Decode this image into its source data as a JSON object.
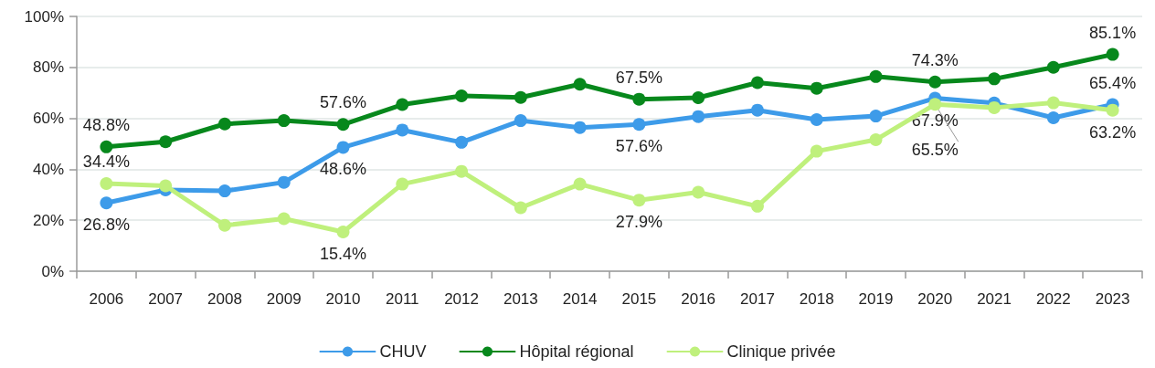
{
  "chart_data": {
    "type": "line",
    "categories": [
      "2006",
      "2007",
      "2008",
      "2009",
      "2010",
      "2011",
      "2012",
      "2013",
      "2014",
      "2015",
      "2016",
      "2017",
      "2018",
      "2019",
      "2020",
      "2021",
      "2022",
      "2023"
    ],
    "series": [
      {
        "name": "CHUV",
        "color": "#3d9be9",
        "values": [
          26.8,
          31.9,
          31.5,
          34.9,
          48.6,
          55.4,
          50.6,
          59.1,
          56.4,
          57.6,
          60.7,
          63.2,
          59.5,
          60.9,
          67.9,
          66.0,
          60.2,
          65.4
        ],
        "value_labels": [
          "26.8%",
          null,
          null,
          null,
          "48.6%",
          null,
          null,
          null,
          null,
          "57.6%",
          null,
          null,
          null,
          null,
          "67.9%",
          null,
          null,
          "65.4%"
        ]
      },
      {
        "name": "Hôpital régional",
        "color": "#07881c",
        "values": [
          48.8,
          50.8,
          57.8,
          59.1,
          57.6,
          65.4,
          68.8,
          68.2,
          73.4,
          67.5,
          68.1,
          74.0,
          71.8,
          76.4,
          74.3,
          75.5,
          80.0,
          85.1
        ],
        "value_labels": [
          "48.8%",
          null,
          null,
          null,
          "57.6%",
          null,
          null,
          null,
          null,
          "67.5%",
          null,
          null,
          null,
          null,
          "74.3%",
          null,
          null,
          "85.1%"
        ]
      },
      {
        "name": "Clinique privée",
        "color": "#bff07c",
        "values": [
          34.4,
          33.5,
          18.0,
          20.6,
          15.4,
          34.2,
          39.2,
          24.9,
          34.2,
          27.9,
          31.0,
          25.5,
          47.1,
          51.6,
          65.5,
          64.2,
          66.1,
          63.2
        ],
        "value_labels": [
          "34.4%",
          null,
          null,
          null,
          "15.4%",
          null,
          null,
          null,
          null,
          "27.9%",
          null,
          null,
          null,
          null,
          "65.5%",
          null,
          null,
          "63.2%"
        ]
      }
    ],
    "ylim": [
      0,
      100
    ],
    "yticks": [
      {
        "value": 0,
        "label": "0%"
      },
      {
        "value": 20,
        "label": "20%"
      },
      {
        "value": 40,
        "label": "40%"
      },
      {
        "value": 60,
        "label": "60%"
      },
      {
        "value": 80,
        "label": "80%"
      },
      {
        "value": 100,
        "label": "100%"
      }
    ],
    "grid": "y",
    "legend": "bottom",
    "marker": "circle",
    "line_style": "solid"
  }
}
